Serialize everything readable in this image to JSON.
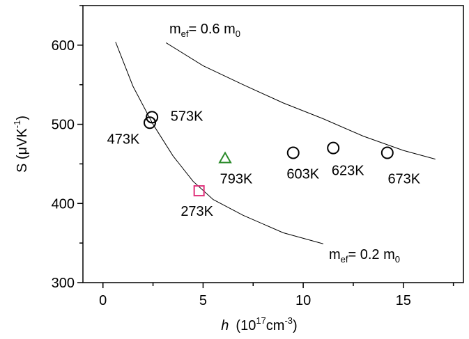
{
  "chart_data": {
    "type": "scatter",
    "x_label": {
      "italic": "h",
      "parts": [
        "(10",
        "17",
        "cm",
        "-3",
        ")"
      ]
    },
    "y_label": {
      "parts": [
        "S  (μVK",
        "-1",
        ")"
      ]
    },
    "xlim": [
      -1,
      18
    ],
    "ylim": [
      300,
      650
    ],
    "xticks": [
      0,
      5,
      10,
      15
    ],
    "yticks": [
      300,
      400,
      500,
      600
    ],
    "xminorticks": [
      2.5,
      7.5,
      12.5,
      17.5
    ],
    "yminorticks": [
      350,
      450,
      550,
      650
    ],
    "points": [
      {
        "label": "473K",
        "x": 2.34,
        "y": 502,
        "marker": "circle",
        "color": "#000000"
      },
      {
        "label": "573K",
        "x": 2.45,
        "y": 509,
        "marker": "circle",
        "color": "#000000"
      },
      {
        "label": "793K",
        "x": 6.1,
        "y": 457,
        "marker": "triangle",
        "color": "#2a8a2a"
      },
      {
        "label": "603K",
        "x": 9.5,
        "y": 464,
        "marker": "circle",
        "color": "#000000"
      },
      {
        "label": "623K",
        "x": 11.5,
        "y": 470,
        "marker": "circle",
        "color": "#000000"
      },
      {
        "label": "673K",
        "x": 14.2,
        "y": 464,
        "marker": "circle",
        "color": "#000000"
      },
      {
        "label": "273K",
        "x": 4.8,
        "y": 416,
        "marker": "square",
        "color": "#e0307a"
      }
    ],
    "curves": [
      {
        "x": [
          0.63,
          1.5,
          2.5,
          3.5,
          4.5,
          5.5,
          7,
          9,
          11
        ],
        "y": [
          604,
          548,
          500,
          460,
          428,
          405,
          385,
          363,
          349
        ]
      },
      {
        "x": [
          3.15,
          5,
          7,
          9,
          11,
          13,
          15,
          16.6
        ],
        "y": [
          603,
          574,
          550,
          527,
          507,
          485,
          467,
          456
        ]
      }
    ],
    "annotations": [
      {
        "parts": [
          "m",
          "ef",
          "= 0.6 m",
          "0"
        ]
      },
      {
        "parts": [
          "m",
          "ef",
          "= 0.2 m",
          "0"
        ]
      }
    ]
  }
}
